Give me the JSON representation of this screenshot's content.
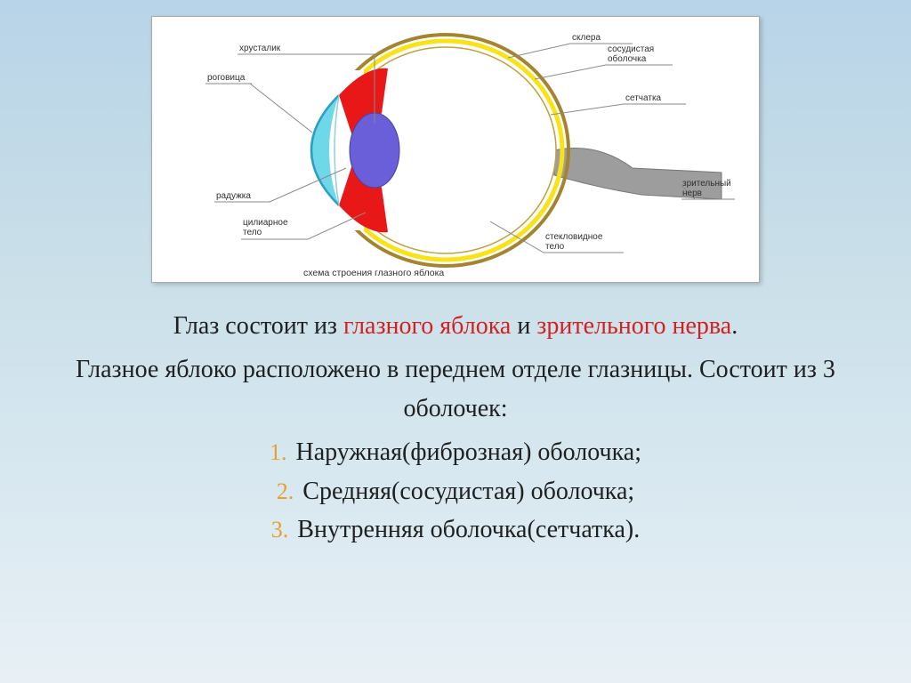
{
  "diagram": {
    "caption": "схема строения глазного яблока",
    "labels_left": {
      "khrustalik": "хрусталик",
      "rogovitsa": "роговица",
      "raduzhka": "радужка",
      "tsiliarnoe_telo": "цилиарное\nтело"
    },
    "labels_right": {
      "sklera": "склера",
      "sosudistaya": "сосудистая\nоболочка",
      "setchatka": "сетчатка",
      "zritelnyi_nerv": "зрительный\nнерв",
      "steklovidnoe": "стекловидное\nтело"
    },
    "colors": {
      "sclera_outer": "#a5842f",
      "sclera_fill": "#ffffff",
      "choroid": "#f7e318",
      "retina": "#e0c050",
      "ciliary": "#e81818",
      "lens": "#6a5fd8",
      "iris_outline": "#3a3a3a",
      "cornea_fill": "#6fd8e8",
      "cornea_stroke": "#2aa0c0",
      "nerve_fill": "#9d9d9d",
      "label_line": "#8a8a8a",
      "label_underline": "#8a8a8a"
    }
  },
  "text": {
    "p1_pre": "Глаз состоит из ",
    "p1_em1": "глазного яблока",
    "p1_mid": " и ",
    "p1_em2": "зрительного нерва",
    "p1_end": ".",
    "p2": "Глазное яблоко расположено в переднем отделе глазницы. Состоит из 3 оболочек:",
    "layers": [
      "Наружная(фиброзная) оболочка;",
      "Средняя(сосудистая) оболочка;",
      "Внутренняя оболочка(сетчатка)."
    ],
    "emph_color": "#d42020",
    "num_color": "#e6a030"
  }
}
